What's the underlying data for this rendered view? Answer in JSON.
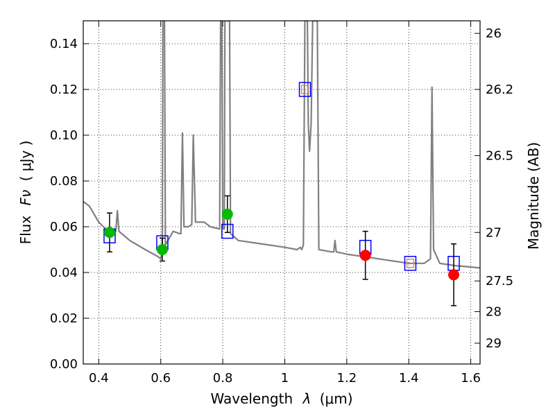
{
  "chart_data": {
    "type": "scatter",
    "xlabel_text": "Wavelength",
    "xlabel_symbol": "λ",
    "xlabel_unit": "(μm)",
    "ylabel_text": "Flux",
    "ylabel_symbol": "Fν",
    "ylabel_unit": "( μJy )",
    "y2label": "Magnitude (AB)",
    "xlim": [
      0.35,
      1.63
    ],
    "ylim": [
      0.0,
      0.15
    ],
    "grid": true,
    "x_ticks": [
      0.4,
      0.6,
      0.8,
      1.0,
      1.2,
      1.4,
      1.6
    ],
    "x_tick_labels": [
      "0.4",
      "0.6",
      "0.8",
      "1",
      "1.2",
      "1.4",
      "1.6"
    ],
    "y_ticks": [
      0.0,
      0.02,
      0.04,
      0.06,
      0.08,
      0.1,
      0.12,
      0.14
    ],
    "y_tick_labels": [
      "0.00",
      "0.02",
      "0.04",
      "0.06",
      "0.08",
      "0.10",
      "0.12",
      "0.14"
    ],
    "y2_ticks": [
      {
        "flux": 0.1445,
        "label": "26"
      },
      {
        "flux": 0.12,
        "label": "26.2"
      },
      {
        "flux": 0.0911,
        "label": "26.5"
      },
      {
        "flux": 0.0575,
        "label": "27"
      },
      {
        "flux": 0.0363,
        "label": "27.5"
      },
      {
        "flux": 0.0229,
        "label": "28"
      },
      {
        "flux": 0.0091,
        "label": "29"
      }
    ],
    "series": [
      {
        "kind": "line",
        "color": "#808080",
        "points": [
          [
            0.35,
            0.071
          ],
          [
            0.37,
            0.069
          ],
          [
            0.4,
            0.062
          ],
          [
            0.43,
            0.058
          ],
          [
            0.45,
            0.059
          ],
          [
            0.455,
            0.058
          ],
          [
            0.46,
            0.067
          ],
          [
            0.465,
            0.058
          ],
          [
            0.5,
            0.054
          ],
          [
            0.55,
            0.05
          ],
          [
            0.59,
            0.047
          ],
          [
            0.6,
            0.046
          ],
          [
            0.605,
            0.05
          ],
          [
            0.607,
            0.15
          ],
          [
            0.612,
            0.15
          ],
          [
            0.615,
            0.052
          ],
          [
            0.64,
            0.058
          ],
          [
            0.66,
            0.057
          ],
          [
            0.665,
            0.057
          ],
          [
            0.67,
            0.101
          ],
          [
            0.675,
            0.06
          ],
          [
            0.69,
            0.06
          ],
          [
            0.7,
            0.061
          ],
          [
            0.705,
            0.1
          ],
          [
            0.712,
            0.062
          ],
          [
            0.74,
            0.062
          ],
          [
            0.76,
            0.06
          ],
          [
            0.79,
            0.059
          ],
          [
            0.793,
            0.15
          ],
          [
            0.797,
            0.15
          ],
          [
            0.8,
            0.059
          ],
          [
            0.805,
            0.059
          ],
          [
            0.807,
            0.15
          ],
          [
            0.822,
            0.15
          ],
          [
            0.825,
            0.057
          ],
          [
            0.85,
            0.054
          ],
          [
            0.9,
            0.053
          ],
          [
            0.95,
            0.052
          ],
          [
            1.0,
            0.051
          ],
          [
            1.04,
            0.05
          ],
          [
            1.05,
            0.051
          ],
          [
            1.055,
            0.05
          ],
          [
            1.06,
            0.052
          ],
          [
            1.065,
            0.15
          ],
          [
            1.073,
            0.15
          ],
          [
            1.076,
            0.105
          ],
          [
            1.08,
            0.093
          ],
          [
            1.085,
            0.105
          ],
          [
            1.09,
            0.15
          ],
          [
            1.105,
            0.15
          ],
          [
            1.11,
            0.05
          ],
          [
            1.15,
            0.049
          ],
          [
            1.158,
            0.049
          ],
          [
            1.162,
            0.054
          ],
          [
            1.166,
            0.049
          ],
          [
            1.2,
            0.048
          ],
          [
            1.25,
            0.047
          ],
          [
            1.3,
            0.046
          ],
          [
            1.35,
            0.045
          ],
          [
            1.4,
            0.044
          ],
          [
            1.45,
            0.044
          ],
          [
            1.47,
            0.046
          ],
          [
            1.475,
            0.121
          ],
          [
            1.48,
            0.05
          ],
          [
            1.5,
            0.044
          ],
          [
            1.55,
            0.043
          ],
          [
            1.63,
            0.042
          ]
        ]
      },
      {
        "kind": "open_square",
        "color": "#0000ff",
        "points": [
          [
            0.435,
            0.056
          ],
          [
            0.605,
            0.053
          ],
          [
            0.815,
            0.058
          ],
          [
            1.065,
            0.12
          ],
          [
            1.26,
            0.051
          ],
          [
            1.405,
            0.044
          ],
          [
            1.545,
            0.044
          ]
        ]
      },
      {
        "kind": "small_square",
        "color": "#d08060",
        "points": [
          [
            1.065,
            0.12
          ],
          [
            1.405,
            0.044
          ]
        ]
      },
      {
        "kind": "filled_circle",
        "color": "#00bb00",
        "errors": true,
        "points": [
          [
            0.435,
            0.0575,
            0.0085
          ],
          [
            0.605,
            0.05,
            0.005
          ],
          [
            0.815,
            0.0655,
            0.008
          ]
        ]
      },
      {
        "kind": "filled_circle",
        "color": "#ff0000",
        "errors": true,
        "points": [
          [
            1.26,
            0.0475,
            0.0105
          ],
          [
            1.545,
            0.039,
            0.0135
          ]
        ]
      }
    ]
  }
}
